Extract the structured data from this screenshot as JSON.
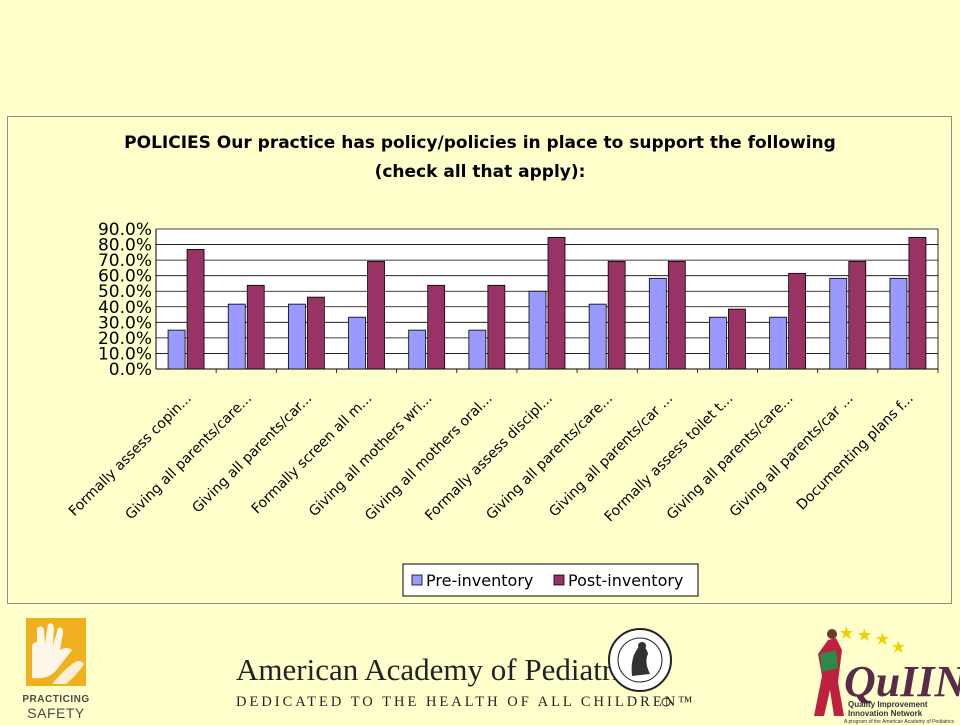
{
  "chart_data": {
    "type": "bar",
    "title_line1": "POLICIES Our practice has policy/policies in place to support the following",
    "title_line2": "(check all that apply):",
    "categories": [
      "Formally assess copin...",
      "Giving all parents/care...",
      "Giving all parents/car...",
      "Formally screen all m...",
      "Giving all mothers wri...",
      "Giving all mothers oral...",
      "Formally assess discipl...",
      "Giving all parents/care...",
      "Giving all parents/car ...",
      "Formally assess toilet t...",
      "Giving all parents/care...",
      "Giving all parents/car ...",
      "Documenting plans f..."
    ],
    "series": [
      {
        "name": "Pre-inventory",
        "color": "#9999ff",
        "values": [
          25.0,
          41.7,
          41.7,
          33.3,
          25.0,
          25.0,
          50.0,
          41.7,
          58.3,
          33.3,
          33.3,
          58.3,
          58.3
        ]
      },
      {
        "name": "Post-inventory",
        "color": "#993366",
        "values": [
          76.9,
          53.8,
          46.2,
          69.2,
          53.8,
          53.8,
          84.6,
          69.2,
          69.2,
          38.5,
          61.5,
          69.2,
          84.6
        ]
      }
    ],
    "y_ticks": [
      "0.0%",
      "10.0%",
      "20.0%",
      "30.0%",
      "40.0%",
      "50.0%",
      "60.0%",
      "70.0%",
      "80.0%",
      "90.0%"
    ],
    "ylim": [
      0,
      90
    ],
    "grid": true,
    "legend_position": "bottom-right"
  },
  "footer": {
    "practicing_safety_line1": "PRACTICING",
    "practicing_safety_line2": "SAFETY",
    "aap_name": "American Academy of Pediatrics",
    "aap_tagline": "DEDICATED TO THE HEALTH OF ALL CHILDREN™",
    "quiin_name": "QuIIN",
    "quiin_sub1": "Quality Improvement",
    "quiin_sub2": "Innovation Network",
    "quiin_sub3": "A program of the American Academy of Pediatrics"
  }
}
